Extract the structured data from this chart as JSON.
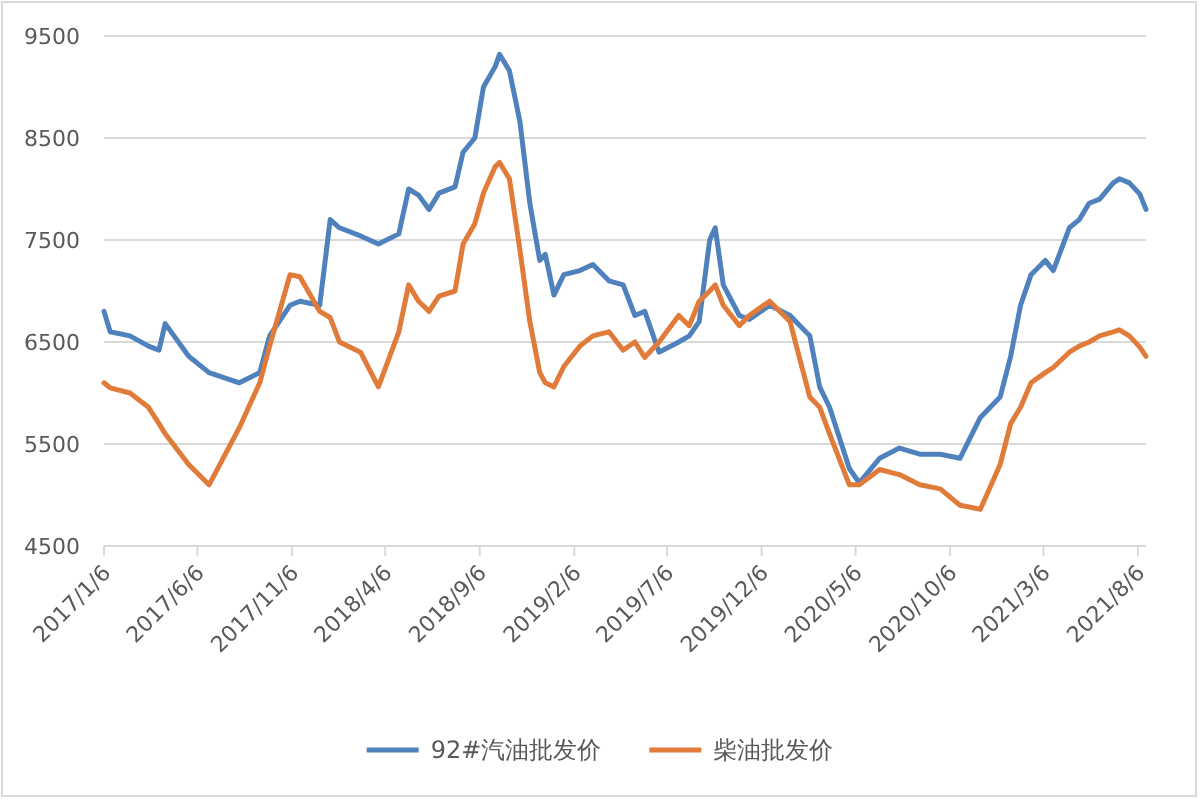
{
  "chart_data": {
    "type": "line",
    "x": [
      "2017-01-06",
      "2017-01-16",
      "2017-02-17",
      "2017-03-19",
      "2017-04-05",
      "2017-04-15",
      "2017-05-23",
      "2017-06-25",
      "2017-08-13",
      "2017-09-15",
      "2017-10-01",
      "2017-11-03",
      "2017-11-19",
      "2017-12-21",
      "2018-01-07",
      "2018-01-22",
      "2018-02-25",
      "2018-03-26",
      "2018-04-28",
      "2018-05-14",
      "2018-05-30",
      "2018-06-16",
      "2018-07-02",
      "2018-07-28",
      "2018-08-10",
      "2018-08-29",
      "2018-09-12",
      "2018-10-01",
      "2018-10-08",
      "2018-10-24",
      "2018-11-10",
      "2018-11-26",
      "2018-12-12",
      "2018-12-21",
      "2019-01-04",
      "2019-01-20",
      "2019-02-15",
      "2019-03-08",
      "2019-04-03",
      "2019-04-26",
      "2019-05-15",
      "2019-05-31",
      "2019-06-23",
      "2019-07-25",
      "2019-08-11",
      "2019-08-27",
      "2019-09-13",
      "2019-09-22",
      "2019-10-05",
      "2019-10-31",
      "2019-11-16",
      "2019-12-19",
      "2020-01-21",
      "2020-02-22",
      "2020-03-09",
      "2020-03-25",
      "2020-04-26",
      "2020-05-12",
      "2020-06-14",
      "2020-07-16",
      "2020-08-18",
      "2020-09-20",
      "2020-10-22",
      "2020-11-24",
      "2020-12-26",
      "2021-01-12",
      "2021-01-28",
      "2021-02-14",
      "2021-03-09",
      "2021-03-22",
      "2021-04-17",
      "2021-05-03",
      "2021-05-19",
      "2021-06-05",
      "2021-06-27",
      "2021-07-07",
      "2021-07-23",
      "2021-08-09",
      "2021-08-19"
    ],
    "series": [
      {
        "name": "92#汽油批发价",
        "color": "#4f81bd",
        "values": [
          6800,
          6600,
          6560,
          6460,
          6420,
          6680,
          6360,
          6200,
          6100,
          6200,
          6560,
          6860,
          6900,
          6860,
          7700,
          7620,
          7540,
          7460,
          7560,
          8000,
          7940,
          7800,
          7960,
          8020,
          8360,
          8500,
          9000,
          9200,
          9320,
          9160,
          8660,
          7860,
          7300,
          7360,
          6960,
          7160,
          7200,
          7260,
          7100,
          7060,
          6760,
          6800,
          6400,
          6500,
          6560,
          6700,
          7500,
          7620,
          7060,
          6760,
          6720,
          6860,
          6760,
          6560,
          6060,
          5860,
          5260,
          5120,
          5360,
          5460,
          5400,
          5400,
          5360,
          5760,
          5960,
          6360,
          6860,
          7160,
          7300,
          7200,
          7620,
          7700,
          7860,
          7900,
          8060,
          8100,
          8060,
          7950,
          7800
        ]
      },
      {
        "name": "柴油批发价",
        "color": "#e07b39",
        "values": [
          6100,
          6050,
          6000,
          5860,
          5700,
          5600,
          5300,
          5100,
          5660,
          6100,
          6460,
          7160,
          7140,
          6800,
          6740,
          6500,
          6400,
          6060,
          6600,
          7060,
          6900,
          6800,
          6950,
          7000,
          7460,
          7660,
          7960,
          8220,
          8260,
          8100,
          7400,
          6700,
          6200,
          6100,
          6060,
          6260,
          6460,
          6560,
          6600,
          6420,
          6500,
          6350,
          6500,
          6760,
          6660,
          6900,
          7000,
          7060,
          6860,
          6660,
          6760,
          6900,
          6700,
          5960,
          5860,
          5600,
          5100,
          5100,
          5250,
          5200,
          5100,
          5060,
          4900,
          4860,
          5300,
          5700,
          5860,
          6100,
          6200,
          6250,
          6400,
          6460,
          6500,
          6560,
          6600,
          6620,
          6560,
          6450,
          6360
        ]
      }
    ],
    "xlim": [
      "2017-01-06",
      "2021-08-19"
    ],
    "xticks": [
      {
        "value": "2017-01-06",
        "label": "2017/1/6"
      },
      {
        "value": "2017-06-06",
        "label": "2017/6/6"
      },
      {
        "value": "2017-11-06",
        "label": "2017/11/6"
      },
      {
        "value": "2018-04-06",
        "label": "2018/4/6"
      },
      {
        "value": "2018-09-06",
        "label": "2018/9/6"
      },
      {
        "value": "2019-02-06",
        "label": "2019/2/6"
      },
      {
        "value": "2019-07-06",
        "label": "2019/7/6"
      },
      {
        "value": "2019-12-06",
        "label": "2019/12/6"
      },
      {
        "value": "2020-05-06",
        "label": "2020/5/6"
      },
      {
        "value": "2020-10-06",
        "label": "2020/10/6"
      },
      {
        "value": "2021-03-06",
        "label": "2021/3/6"
      },
      {
        "value": "2021-08-06",
        "label": "2021/8/6"
      }
    ],
    "ylim": [
      4500,
      9500
    ],
    "yticks": [
      4500,
      5500,
      6500,
      7500,
      8500,
      9500
    ],
    "grid": "y",
    "legend": "bottom"
  }
}
